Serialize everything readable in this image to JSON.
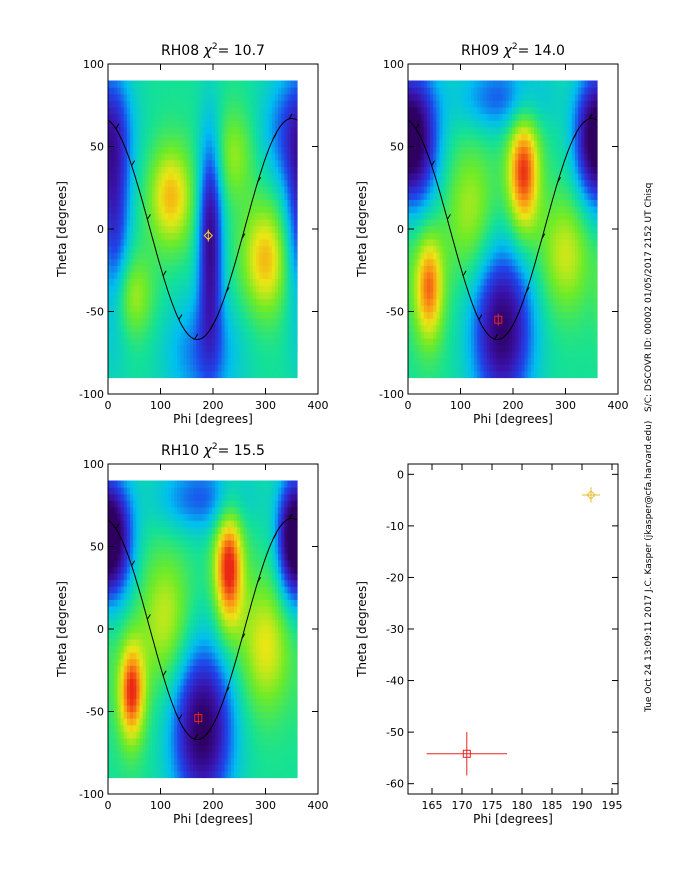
{
  "chart_data": [
    {
      "type": "heatmap",
      "panel": "RH08",
      "title_prefix": "RH08",
      "title_chi_label": "χ",
      "title_chi_exp": "2",
      "title_value": "= 10.7",
      "xlabel": "Phi [degrees]",
      "ylabel": "Theta [degrees]",
      "xlim": [
        0,
        400
      ],
      "ylim": [
        -100,
        100
      ],
      "xticks": [
        0,
        100,
        200,
        300,
        400
      ],
      "yticks": [
        -100,
        -50,
        0,
        50,
        100
      ],
      "curve_amplitude_deg": 67,
      "curve_peak_phi": 170,
      "marker": {
        "type": "diamond",
        "phi": 191,
        "theta": -4,
        "color": "#ffd21e"
      },
      "blobs": [
        {
          "phi": 120,
          "theta": 20,
          "w": 1.1,
          "sx": 30,
          "sy": 22
        },
        {
          "phi": 300,
          "theta": -18,
          "w": 1.1,
          "sx": 32,
          "sy": 24
        },
        {
          "phi": 45,
          "theta": -40,
          "w": 0.75,
          "sx": 28,
          "sy": 18
        },
        {
          "phi": 240,
          "theta": 45,
          "w": 0.6,
          "sx": 28,
          "sy": 20
        },
        {
          "phi": 195,
          "theta": -5,
          "w": -1.7,
          "sx": 16,
          "sy": 45
        },
        {
          "phi": 10,
          "theta": 10,
          "w": -1.3,
          "sx": 22,
          "sy": 50
        },
        {
          "phi": 350,
          "theta": 60,
          "w": -0.9,
          "sx": 40,
          "sy": 25
        },
        {
          "phi": 180,
          "theta": -75,
          "w": -0.8,
          "sx": 50,
          "sy": 25
        }
      ]
    },
    {
      "type": "heatmap",
      "panel": "RH09",
      "title_prefix": "RH09",
      "title_chi_label": "χ",
      "title_chi_exp": "2",
      "title_value": "= 14.0",
      "xlabel": "Phi [degrees]",
      "ylabel": "Theta [degrees]",
      "xlim": [
        0,
        400
      ],
      "ylim": [
        -100,
        100
      ],
      "xticks": [
        0,
        100,
        200,
        300,
        400
      ],
      "yticks": [
        -100,
        -50,
        0,
        50,
        100
      ],
      "curve_amplitude_deg": 67,
      "curve_peak_phi": 170,
      "marker": {
        "type": "square",
        "phi": 172,
        "theta": -55,
        "color": "#e8231e"
      },
      "blobs": [
        {
          "phi": 220,
          "theta": 35,
          "w": 1.6,
          "sx": 22,
          "sy": 28
        },
        {
          "phi": 40,
          "theta": -35,
          "w": 1.4,
          "sx": 20,
          "sy": 24
        },
        {
          "phi": 300,
          "theta": -15,
          "w": 0.8,
          "sx": 35,
          "sy": 25
        },
        {
          "phi": 120,
          "theta": 10,
          "w": 0.7,
          "sx": 35,
          "sy": 30
        },
        {
          "phi": 180,
          "theta": -60,
          "w": -1.9,
          "sx": 40,
          "sy": 35
        },
        {
          "phi": 20,
          "theta": 55,
          "w": -1.5,
          "sx": 30,
          "sy": 30
        },
        {
          "phi": 350,
          "theta": 55,
          "w": -1.3,
          "sx": 25,
          "sy": 25
        },
        {
          "phi": 180,
          "theta": 80,
          "w": -0.9,
          "sx": 60,
          "sy": 15
        }
      ]
    },
    {
      "type": "heatmap",
      "panel": "RH10",
      "title_prefix": "RH10",
      "title_chi_label": "χ",
      "title_chi_exp": "2",
      "title_value": "= 15.5",
      "xlabel": "Phi [degrees]",
      "ylabel": "Theta [degrees]",
      "xlim": [
        0,
        400
      ],
      "ylim": [
        -100,
        100
      ],
      "xticks": [
        0,
        100,
        200,
        300,
        400
      ],
      "yticks": [
        -100,
        -50,
        0,
        50,
        100
      ],
      "curve_amplitude_deg": 67,
      "curve_peak_phi": 170,
      "marker": {
        "type": "square",
        "phi": 172,
        "theta": -54,
        "color": "#e8231e"
      },
      "blobs": [
        {
          "phi": 230,
          "theta": 38,
          "w": 1.7,
          "sx": 20,
          "sy": 28
        },
        {
          "phi": 45,
          "theta": -38,
          "w": 1.6,
          "sx": 18,
          "sy": 22
        },
        {
          "phi": 300,
          "theta": -10,
          "w": 0.9,
          "sx": 35,
          "sy": 28
        },
        {
          "phi": 110,
          "theta": 5,
          "w": 0.8,
          "sx": 35,
          "sy": 30
        },
        {
          "phi": 180,
          "theta": -60,
          "w": -2.0,
          "sx": 40,
          "sy": 35
        },
        {
          "phi": 15,
          "theta": 55,
          "w": -1.6,
          "sx": 25,
          "sy": 25
        },
        {
          "phi": 350,
          "theta": 55,
          "w": -1.5,
          "sx": 20,
          "sy": 25
        },
        {
          "phi": 180,
          "theta": 80,
          "w": -0.9,
          "sx": 60,
          "sy": 15
        }
      ]
    },
    {
      "type": "scatter",
      "panel": "summary",
      "xlabel": "Phi [degrees]",
      "ylabel": "Theta [degrees]",
      "xlim": [
        161,
        196
      ],
      "ylim": [
        -62,
        2
      ],
      "xticks": [
        165,
        170,
        175,
        180,
        185,
        190,
        195
      ],
      "yticks": [
        0,
        -10,
        -20,
        -30,
        -40,
        -50,
        -60
      ],
      "points": [
        {
          "x": 170.8,
          "y": -54.2,
          "xerr": 6.7,
          "yerr": 4.2,
          "marker": "square",
          "color": "#e8231e"
        },
        {
          "x": 191.5,
          "y": -4.0,
          "xerr": 1.5,
          "yerr": 1.5,
          "marker": "diamond",
          "color": "#e6be32"
        }
      ]
    }
  ],
  "side_labels": {
    "spacecraft": "S/C: DSCOVR ID: 00002 01/05/2017  2152 UT Chisq",
    "author": "Tue Oct 24 13:09:11 2017  J.C. Kasper (jkasper@cfa.harvard.edu)"
  },
  "colors": {
    "axes": "#000000",
    "curve": "#000000"
  }
}
